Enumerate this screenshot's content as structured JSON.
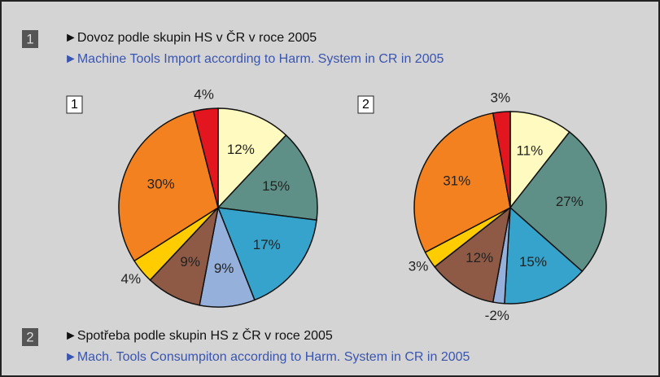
{
  "headings": [
    {
      "number": "1",
      "lines": [
        "►Dovoz podle skupin HS v ČR v roce 2005",
        "►Machine Tools Import according to Harm. System in CR in 2005"
      ]
    },
    {
      "number": "2",
      "lines": [
        "►Spotřeba podle skupin HS z ČR v roce 2005",
        "►Mach. Tools Consumpiton according to Harm. System in CR in 2005"
      ]
    }
  ],
  "chart_data": [
    {
      "type": "pie",
      "title": "1",
      "values": [
        12,
        15,
        17,
        9,
        9,
        4,
        30,
        4
      ],
      "value_labels": [
        "12%",
        "15%",
        "17%",
        "9%",
        "9%",
        "4%",
        "30%",
        "4%"
      ],
      "colors": [
        "#fffbc0",
        "#5e9088",
        "#35a3cb",
        "#96b0dc",
        "#8e5a45",
        "#ffcc00",
        "#f48120",
        "#e3151f"
      ]
    },
    {
      "type": "pie",
      "title": "2",
      "values": [
        11,
        27,
        15,
        -2,
        12,
        3,
        31,
        3
      ],
      "value_labels": [
        "11%",
        "27%",
        "15%",
        "-2%",
        "12%",
        "3%",
        "31%",
        "3%"
      ],
      "colors": [
        "#fffbc0",
        "#5e9088",
        "#35a3cb",
        "#96b0dc",
        "#8e5a45",
        "#ffcc00",
        "#f48120",
        "#e3151f"
      ]
    }
  ]
}
